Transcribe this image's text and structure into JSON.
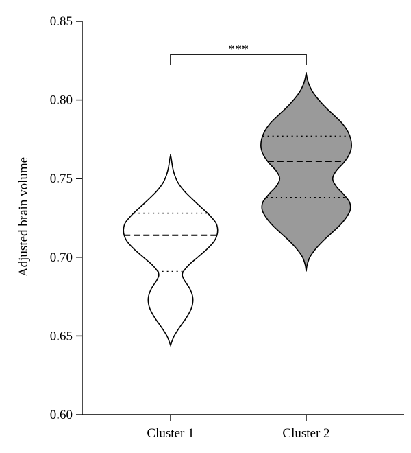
{
  "chart_data": {
    "type": "violin",
    "ylabel": "Adjusted brain volume",
    "ylim": [
      0.6,
      0.85
    ],
    "yticks": [
      0.6,
      0.65,
      0.7,
      0.75,
      0.8,
      0.85
    ],
    "ytick_labels": [
      "0.60",
      "0.65",
      "0.70",
      "0.75",
      "0.80",
      "0.85"
    ],
    "categories": [
      "Cluster 1",
      "Cluster 2"
    ],
    "series": [
      {
        "category": "Cluster 1",
        "fill": "#ffffff",
        "median": 0.714,
        "q1": 0.691,
        "q3": 0.728,
        "min": 0.644,
        "max": 0.765,
        "density": [
          [
            0.644,
            0.0
          ],
          [
            0.65,
            0.06
          ],
          [
            0.656,
            0.16
          ],
          [
            0.662,
            0.27
          ],
          [
            0.668,
            0.35
          ],
          [
            0.674,
            0.37
          ],
          [
            0.68,
            0.32
          ],
          [
            0.686,
            0.22
          ],
          [
            0.69,
            0.2
          ],
          [
            0.695,
            0.3
          ],
          [
            0.7,
            0.45
          ],
          [
            0.705,
            0.6
          ],
          [
            0.71,
            0.72
          ],
          [
            0.714,
            0.77
          ],
          [
            0.718,
            0.78
          ],
          [
            0.722,
            0.75
          ],
          [
            0.727,
            0.64
          ],
          [
            0.732,
            0.5
          ],
          [
            0.737,
            0.36
          ],
          [
            0.742,
            0.23
          ],
          [
            0.747,
            0.13
          ],
          [
            0.752,
            0.07
          ],
          [
            0.757,
            0.035
          ],
          [
            0.762,
            0.015
          ],
          [
            0.765,
            0.0
          ]
        ]
      },
      {
        "category": "Cluster 2",
        "fill": "#9a9a9a",
        "median": 0.761,
        "q1": 0.738,
        "q3": 0.777,
        "min": 0.691,
        "max": 0.817,
        "density": [
          [
            0.691,
            0.0
          ],
          [
            0.695,
            0.015
          ],
          [
            0.7,
            0.06
          ],
          [
            0.705,
            0.15
          ],
          [
            0.71,
            0.27
          ],
          [
            0.715,
            0.41
          ],
          [
            0.72,
            0.55
          ],
          [
            0.725,
            0.66
          ],
          [
            0.73,
            0.73
          ],
          [
            0.735,
            0.72
          ],
          [
            0.74,
            0.62
          ],
          [
            0.745,
            0.5
          ],
          [
            0.75,
            0.44
          ],
          [
            0.755,
            0.5
          ],
          [
            0.76,
            0.62
          ],
          [
            0.765,
            0.71
          ],
          [
            0.77,
            0.75
          ],
          [
            0.775,
            0.74
          ],
          [
            0.78,
            0.69
          ],
          [
            0.785,
            0.6
          ],
          [
            0.79,
            0.47
          ],
          [
            0.795,
            0.33
          ],
          [
            0.8,
            0.21
          ],
          [
            0.805,
            0.11
          ],
          [
            0.81,
            0.045
          ],
          [
            0.814,
            0.015
          ],
          [
            0.817,
            0.0
          ]
        ]
      }
    ],
    "significance": {
      "label": "***",
      "between": [
        "Cluster 1",
        "Cluster 2"
      ],
      "y": 0.829
    },
    "grid": false,
    "legend": "none"
  }
}
